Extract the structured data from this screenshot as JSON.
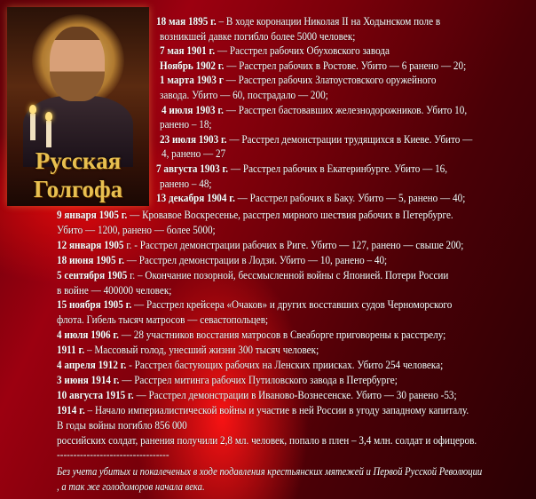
{
  "icon": {
    "title_line1": "Русская",
    "title_line2": "Голгофа"
  },
  "lines": [
    {
      "b": "18 мая 1895 г.",
      "t": " – В ходе коронации Николая II на Ходынском поле в"
    },
    {
      "b": "",
      "t": "возникшей  давке погибло более 5000 человек;"
    },
    {
      "b": "7 мая 1901 г.",
      "t": " — Расстрел рабочих Обуховского завода"
    },
    {
      "b": "Ноябрь 1902 г.",
      "t": " — Расстрел рабочих в Ростове. Убито — 6 ранено — 20;"
    },
    {
      "b": "1 марта 1903 г",
      "t": " — Расстрел рабочих Златоустовского оружейного"
    },
    {
      "b": "",
      "t": "завода. Убито — 60, пострадало — 200;"
    },
    {
      "b": "4 июля 1903 г.",
      "t": " — Расстрел бастовавших железнодорожников. Убито  10,"
    },
    {
      "b": "",
      "t": "ранено – 18;"
    },
    {
      "b": "23 июля 1903 г.",
      "t": " — Расстрел демонстрации трудящихся в Киеве. Убито —"
    },
    {
      "b": "",
      "t": "4, ранено — 27"
    },
    {
      "b": "7 августа 1903 г.",
      "t": " — Расстрел рабочих в Екатеринбурге. Убито — 16,"
    },
    {
      "b": "",
      "t": "ранено – 48;"
    },
    {
      "b": "13 декабря 1904 г.",
      "t": " — Расстрел рабочих в Баку. Убито — 5, ранено — 40;"
    },
    {
      "b": "9 января 1905 г.",
      "t": " — Кровавое Воскресенье, расстрел мирного шествия рабочих в Петербурге."
    },
    {
      "b": "",
      "t": "Убито — 1200, ранено — более 5000;"
    },
    {
      "b": "12 января 1905",
      "t": " г. - Расстрел демонстрации рабочих в Риге. Убито — 127, ранено — свыше 200;"
    },
    {
      "b": "18 июня 1905 г.",
      "t": " — Расстрел демонстрации в Лодзи. Убито — 10, ранено – 40;"
    },
    {
      "b": "5 сентября 1905",
      "t": " г. – Окончание позорной, бессмысленной войны с Японией. Потери России"
    },
    {
      "b": "",
      "t": "в войне — 400000 человек;"
    },
    {
      "b": "15 ноября 1905 г.",
      "t": " — Расстрел крейсера «Очаков» и других восставших судов Черноморского"
    },
    {
      "b": "",
      "t": "флота. Гибель тысяч матросов — севастопольцев;"
    },
    {
      "b": "4 июля 1906 г.",
      "t": " — 28 участников восстания матросов в Свеаборге приговорены к расстрелу;"
    },
    {
      "b": "1911 г.",
      "t": " – Массовый голод, унесший жизни 300 тысяч человек;"
    },
    {
      "b": "4 апреля 1912 г.",
      "t": " - Расстрел бастующих рабочих на Ленских приисках. Убито 254 человека;"
    },
    {
      "b": "3 июня 1914 г.",
      "t": " — Расстрел митинга рабочих Путиловского завода в Петербурге;"
    },
    {
      "b": "10 августа 1915 г.",
      "t": " — Расстрел демонстрации в Иваново-Вознесенске. Убито — 30 ранено -53;"
    },
    {
      "b": "1914 г.",
      "t": " – Начало империалистической войны и участие в ней России в угоду западному капиталу."
    },
    {
      "b": "",
      "t": "В годы войны погибло 856 000"
    },
    {
      "b": "",
      "t": "российских солдат, ранения получили  2,8 мл. человек, попало в плен – 3,4 млн. солдат и офицеров."
    },
    {
      "b": "",
      "t": "----------------------------------"
    }
  ],
  "footnote": [
    "Без учета убитых и покалеченых в ходе подавления крестьянских мятежей и  Первой Русской Революции",
    ", а так же голодоморов начала века."
  ]
}
